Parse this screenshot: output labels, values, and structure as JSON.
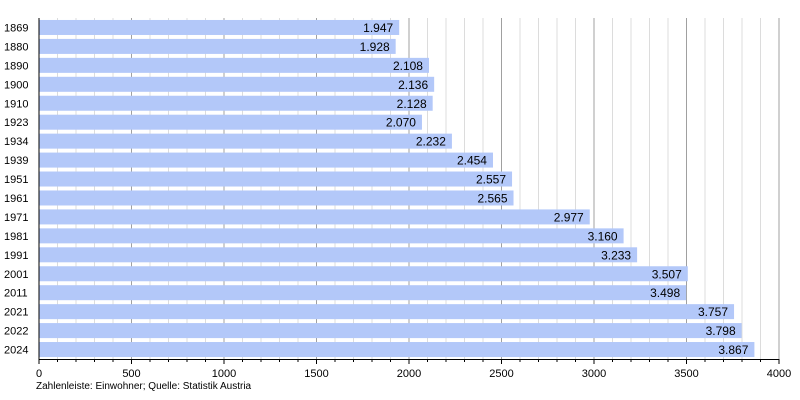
{
  "chart_data": {
    "type": "bar",
    "orientation": "horizontal",
    "categories": [
      "1869",
      "1880",
      "1890",
      "1900",
      "1910",
      "1923",
      "1934",
      "1939",
      "1951",
      "1961",
      "1971",
      "1981",
      "1991",
      "2001",
      "2011",
      "2021",
      "2022",
      "2024"
    ],
    "values": [
      1947,
      1928,
      2108,
      2136,
      2128,
      2070,
      2232,
      2454,
      2557,
      2565,
      2977,
      3160,
      3233,
      3507,
      3498,
      3757,
      3798,
      3867
    ],
    "value_labels": [
      "1.947",
      "1.928",
      "2.108",
      "2.136",
      "2.128",
      "2.070",
      "2.232",
      "2.454",
      "2.557",
      "2.565",
      "2.977",
      "3.160",
      "3.233",
      "3.507",
      "3.498",
      "3.757",
      "3.798",
      "3.867"
    ],
    "xlim": [
      0,
      4000
    ],
    "x_ticks": [
      0,
      500,
      1000,
      1500,
      2000,
      2500,
      3000,
      3500,
      4000
    ],
    "x_tick_labels": [
      "0",
      "500",
      "1000",
      "1500",
      "2000",
      "2500",
      "3000",
      "3500",
      "4000"
    ],
    "grid": true,
    "bar_color": "#b3c8f9",
    "grid_color": "#c8c8c8",
    "footnote": "Zahlenleiste: Einwohner; Quelle: Statistik Austria"
  }
}
